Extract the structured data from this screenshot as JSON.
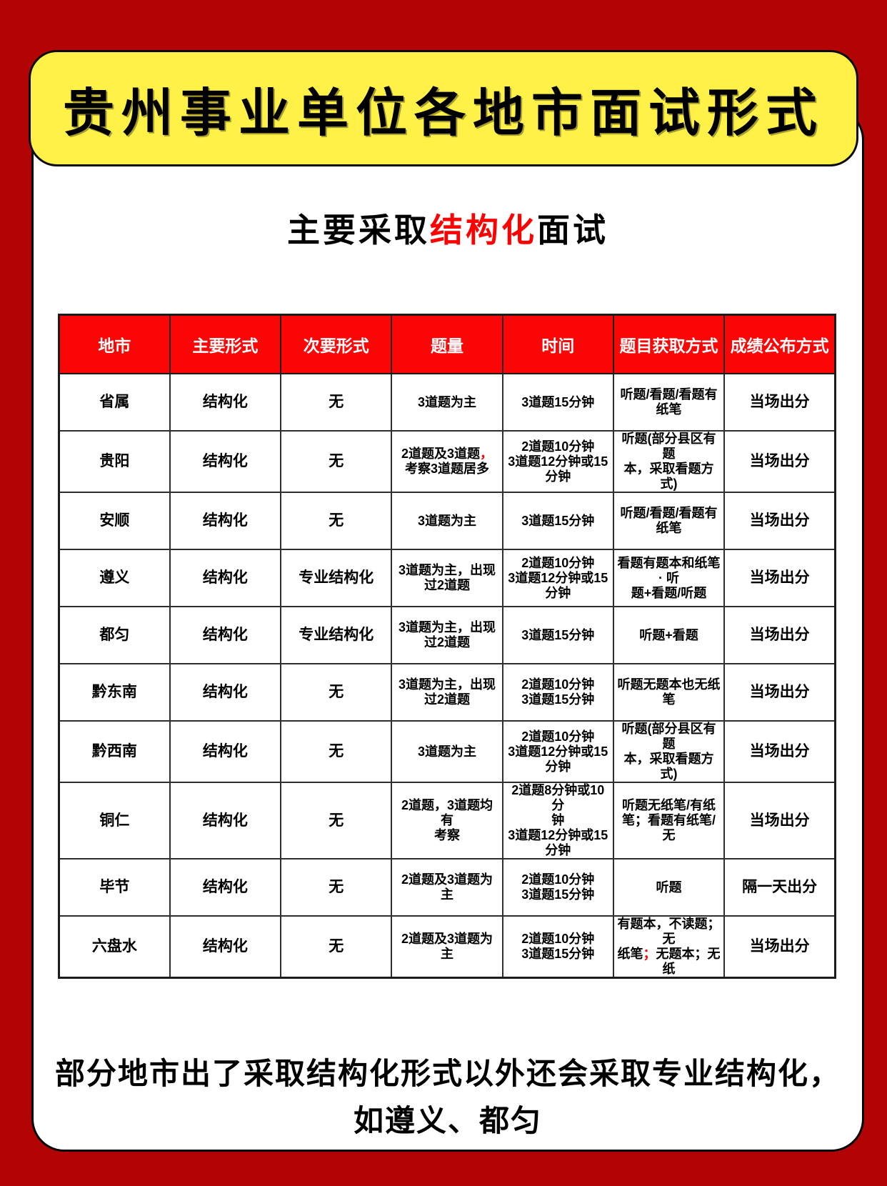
{
  "page": {
    "title": "贵州事业单位各地市面试形式",
    "subtitle": {
      "prefix": "主要采取",
      "highlight": "结构化",
      "suffix": "面试"
    },
    "footer_line1": "部分地市出了采取结构化形式以外还会采取专业结构化，",
    "footer_line2": "如遵义、都匀"
  },
  "colors": {
    "frame_red": "#b20404",
    "header_red": "#fb0606",
    "accent_red": "#ff0000",
    "banner_yellow": "#fff148"
  },
  "table": {
    "headers": [
      "地市",
      "主要形式",
      "次要形式",
      "题量",
      "时间",
      "题目获取方式",
      "成绩公布方式"
    ],
    "rows": [
      {
        "cells": [
          [
            "省属"
          ],
          [
            "结构化"
          ],
          [
            "无"
          ],
          [
            "3道题为主"
          ],
          [
            "3道题15分钟"
          ],
          [
            "听题/看题/看题有\n纸笔"
          ],
          [
            "当场出分"
          ]
        ]
      },
      {
        "cells": [
          [
            "贵阳"
          ],
          [
            "结构化"
          ],
          [
            "无"
          ],
          [
            "2道题及3道题",
            {
              "text": "，",
              "color": "#ff0000"
            },
            "考察3道题居多"
          ],
          [
            "2道题10分钟\n3道题12分钟或15\n分钟"
          ],
          [
            "听题(部分县区有\n题\n本，采取看题方\n式)"
          ],
          [
            "当场出分"
          ]
        ]
      },
      {
        "cells": [
          [
            "安顺"
          ],
          [
            "结构化"
          ],
          [
            "无"
          ],
          [
            "3道题为主"
          ],
          [
            "3道题15分钟"
          ],
          [
            "听题/看题/看题有\n纸笔"
          ],
          [
            "当场出分"
          ]
        ]
      },
      {
        "cells": [
          [
            "遵义"
          ],
          [
            "结构化"
          ],
          [
            "专业结构化"
          ],
          [
            "3道题为主，出现\n过2道题"
          ],
          [
            "2道题10分钟\n3道题12分钟或15\n分钟"
          ],
          [
            "看题有题本和纸笔\n· 听\n题+看题/听题"
          ],
          [
            "当场出分"
          ]
        ]
      },
      {
        "cells": [
          [
            "都匀"
          ],
          [
            "结构化"
          ],
          [
            "专业结构化"
          ],
          [
            "3道题为主，出现\n过2道题"
          ],
          [
            "3道题15分钟"
          ],
          [
            "听题+看题"
          ],
          [
            "当场出分"
          ]
        ]
      },
      {
        "cells": [
          [
            "黔东南"
          ],
          [
            "结构化"
          ],
          [
            "无"
          ],
          [
            "3道题为主，出现\n过2道题"
          ],
          [
            "2道题10分钟\n3道题15分钟"
          ],
          [
            "听题无题本也无纸\n笔"
          ],
          [
            "当场出分"
          ]
        ]
      },
      {
        "cells": [
          [
            "黔西南"
          ],
          [
            "结构化"
          ],
          [
            "无"
          ],
          [
            "3道题为主"
          ],
          [
            "2道题10分钟\n3道题12分钟或15\n分钟"
          ],
          [
            "听题(部分县区有\n题\n本，采取看题方\n式)"
          ],
          [
            "当场出分"
          ]
        ]
      },
      {
        "cells": [
          [
            "铜仁"
          ],
          [
            "结构化"
          ],
          [
            "无"
          ],
          [
            "2道题，3道题均有\n考察"
          ],
          [
            "2道题8分钟或10分\n钟\n3道题12分钟或15\n分钟"
          ],
          [
            "听题无纸笔/有纸\n笔；看题有纸笔/\n无"
          ],
          [
            "当场出分"
          ]
        ]
      },
      {
        "cells": [
          [
            "毕节"
          ],
          [
            "结构化"
          ],
          [
            "无"
          ],
          [
            "2道题及3道题为主"
          ],
          [
            "2道题10分钟\n3道题15分钟"
          ],
          [
            "听题"
          ],
          [
            "隔一天出分"
          ]
        ]
      },
      {
        "cells": [
          [
            "六盘水"
          ],
          [
            "结构化"
          ],
          [
            "无"
          ],
          [
            "2道题及3道题为主"
          ],
          [
            "2道题10分钟\n3道题15分钟"
          ],
          [
            "有题本，不读题；\n无\n纸笔",
            {
              "text": "；",
              "color": "#ff0000"
            },
            "无题本；无\n纸"
          ],
          [
            "当场出分"
          ]
        ]
      }
    ]
  }
}
